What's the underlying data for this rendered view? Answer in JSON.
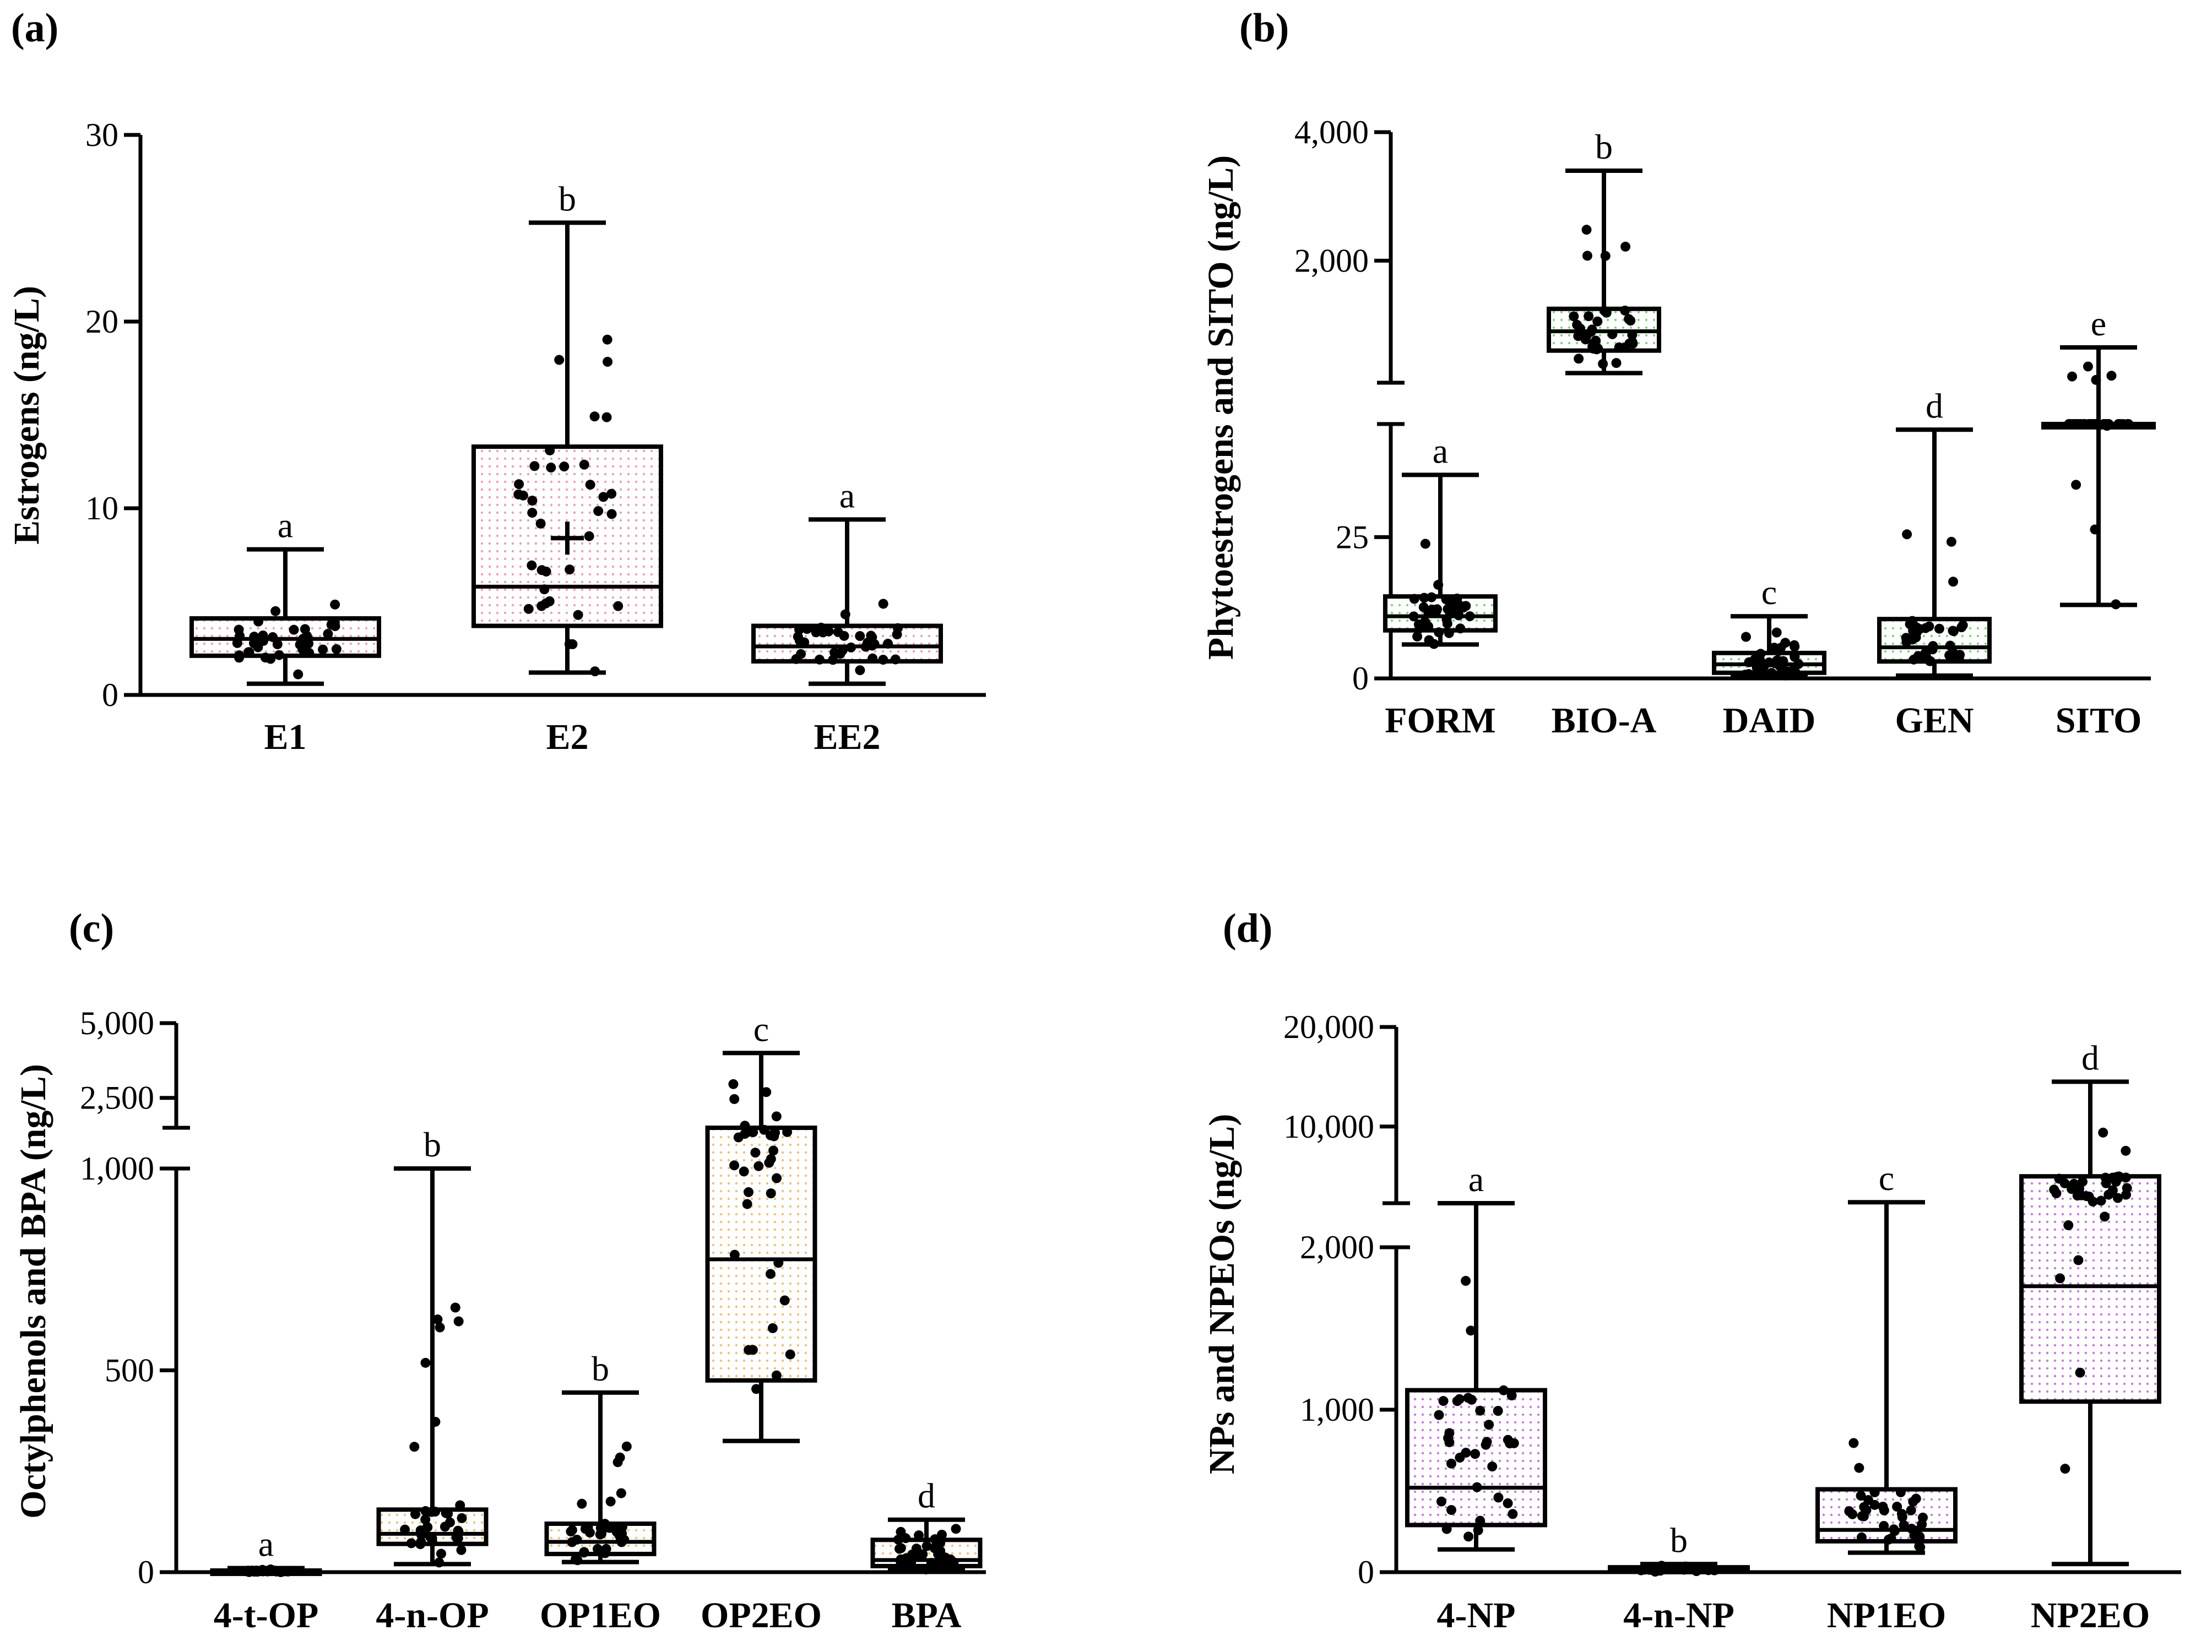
{
  "chart_data": [
    {
      "type": "box",
      "panel_label": "(a)",
      "ylabel": "Estrogens (ng/L)",
      "yticks": [
        {
          "v": 0,
          "label": "0"
        },
        {
          "v": 10,
          "label": "10"
        },
        {
          "v": 20,
          "label": "20"
        },
        {
          "v": 30,
          "label": "30"
        }
      ],
      "ylim": [
        0,
        30
      ],
      "fill_color": "#e8a2b4",
      "boxes": [
        {
          "category": "E1",
          "min": 0.6,
          "q1": 2.1,
          "median": 3.0,
          "q3": 4.1,
          "max": 7.8,
          "letter": "a"
        },
        {
          "category": "E2",
          "min": 1.2,
          "q1": 3.7,
          "median": 5.8,
          "q3": 13.3,
          "max": 25.3,
          "mean": 8.4,
          "letter": "b"
        },
        {
          "category": "EE2",
          "min": 0.6,
          "q1": 1.8,
          "median": 2.6,
          "q3": 3.7,
          "max": 9.4,
          "letter": "a"
        }
      ]
    },
    {
      "type": "box",
      "panel_label": "(b)",
      "ylabel": "Phytoestrogens and SITO (ng/L)",
      "yticks": [
        {
          "v": 0,
          "label": "0"
        },
        {
          "v": 25,
          "label": "25"
        },
        {
          "v": 2000,
          "label": "2,000"
        },
        {
          "v": 4000,
          "label": "4,000"
        }
      ],
      "axis_break": true,
      "fill_color": "#7fd37f",
      "boxes": [
        {
          "category": "FORM",
          "min": 6,
          "q1": 8.5,
          "median": 11,
          "q3": 14.5,
          "max": 36,
          "letter": "a"
        },
        {
          "category": "BIO-A",
          "min": 250,
          "q1": 600,
          "median": 900,
          "q3": 1250,
          "max": 3400,
          "letter": "b"
        },
        {
          "category": "DAID",
          "min": 0.5,
          "q1": 1,
          "median": 2.5,
          "q3": 4.5,
          "max": 11,
          "letter": "c"
        },
        {
          "category": "GEN",
          "min": 0.5,
          "q1": 3,
          "median": 5.5,
          "q3": 10.5,
          "max": 44,
          "letter": "d"
        },
        {
          "category": "SITO",
          "min": 13,
          "q1": 50,
          "median": 60,
          "q3": 70,
          "max": 650,
          "letter": "e"
        }
      ]
    },
    {
      "type": "box",
      "panel_label": "(c)",
      "ylabel": "Octylphenols and BPA (ng/L)",
      "yticks": [
        {
          "v": 0,
          "label": "0"
        },
        {
          "v": 500,
          "label": "500"
        },
        {
          "v": 1000,
          "label": "1,000"
        },
        {
          "v": 2500,
          "label": "2,500"
        },
        {
          "v": 5000,
          "label": "5,000"
        }
      ],
      "axis_break": true,
      "fill_color": "#f0bf80",
      "boxes": [
        {
          "category": "4-t-OP",
          "min": 0,
          "q1": 1,
          "median": 2,
          "q3": 4,
          "max": 10,
          "letter": "a"
        },
        {
          "category": "4-n-OP",
          "min": 20,
          "q1": 70,
          "median": 95,
          "q3": 155,
          "max": 1000,
          "letter": "b"
        },
        {
          "category": "OP1EO",
          "min": 25,
          "q1": 45,
          "median": 75,
          "q3": 120,
          "max": 445,
          "letter": "b"
        },
        {
          "category": "OP2EO",
          "min": 325,
          "q1": 475,
          "median": 775,
          "q3": 1500,
          "max": 4000,
          "letter": "c"
        },
        {
          "category": "BPA",
          "min": 5,
          "q1": 15,
          "median": 30,
          "q3": 80,
          "max": 130,
          "letter": "d"
        }
      ]
    },
    {
      "type": "box",
      "panel_label": "(d)",
      "ylabel": "NPs and NPEOs (ng/L)",
      "yticks": [
        {
          "v": 0,
          "label": "0"
        },
        {
          "v": 1000,
          "label": "1,000"
        },
        {
          "v": 2000,
          "label": "2,000"
        },
        {
          "v": 10000,
          "label": "10,000"
        },
        {
          "v": 20000,
          "label": "20,000"
        }
      ],
      "axis_break": true,
      "fill_color": "#c77bd9",
      "boxes": [
        {
          "category": "4-NP",
          "min": 140,
          "q1": 290,
          "median": 520,
          "q3": 1120,
          "max": 2300,
          "letter": "a"
        },
        {
          "category": "4-n-NP",
          "min": 0,
          "q1": 10,
          "median": 20,
          "q3": 30,
          "max": 50,
          "letter": "b"
        },
        {
          "category": "NP1EO",
          "min": 120,
          "q1": 190,
          "median": 260,
          "q3": 510,
          "max": 2400,
          "letter": "c"
        },
        {
          "category": "NP2EO",
          "min": 50,
          "q1": 1050,
          "median": 1760,
          "q3": 5000,
          "max": 14500,
          "letter": "d"
        }
      ]
    }
  ]
}
